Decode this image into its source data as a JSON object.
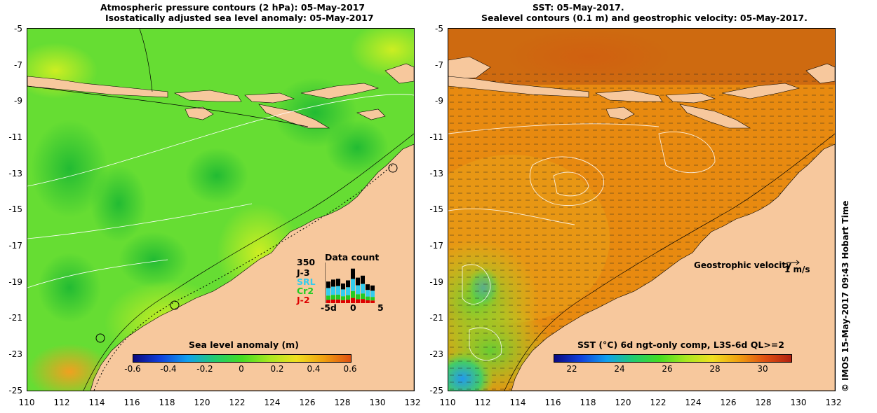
{
  "left": {
    "title1": "Atmospheric pressure contours (2 hPa): 05-May-2017",
    "title2": "Isostatically adjusted sea level anomaly: 05-May-2017",
    "colorbar_title": "Sea level anomaly (m)",
    "colorbar_labels": [
      "-0.6",
      "-0.4",
      "-0.2",
      "0",
      "0.2",
      "0.4",
      "0.6"
    ],
    "datacount": {
      "title": "Data count",
      "max": "350",
      "legend": [
        {
          "label": "J-3",
          "color": "#000000"
        },
        {
          "label": "SRL",
          "color": "#33ccee"
        },
        {
          "label": "Cr2",
          "color": "#22cc22"
        },
        {
          "label": "J-2",
          "color": "#dd0000"
        }
      ],
      "xticks": [
        "-5d",
        "0",
        "5"
      ],
      "bars": [
        0.55,
        0.6,
        0.62,
        0.5,
        0.58,
        0.88,
        0.65,
        0.7,
        0.48,
        0.45
      ]
    }
  },
  "right": {
    "title1": "SST: 05-May-2017.",
    "title2": "Sealevel contours (0.1 m) and geostrophic velocity: 05-May-2017.",
    "colorbar_title": "SST (°C) 6d ngt-only comp, L3S-6d QL>=2",
    "colorbar_labels": [
      "22",
      "24",
      "26",
      "28",
      "30"
    ],
    "velocity_label": "Geostrophic velocity",
    "velocity_scale": "1 m/s"
  },
  "yticks": [
    "-5",
    "-7",
    "-9",
    "-11",
    "-13",
    "-15",
    "-17",
    "-19",
    "-21",
    "-23",
    "-25"
  ],
  "xticks": [
    "110",
    "112",
    "114",
    "116",
    "118",
    "120",
    "122",
    "124",
    "126",
    "128",
    "130",
    "132"
  ],
  "footer": "© IMOS 15-May-2017 09:43 Hobart Time",
  "colors": {
    "land": "#f7c89d",
    "sla_mid": "#55dd22",
    "sst_warm": "#e88a10"
  }
}
